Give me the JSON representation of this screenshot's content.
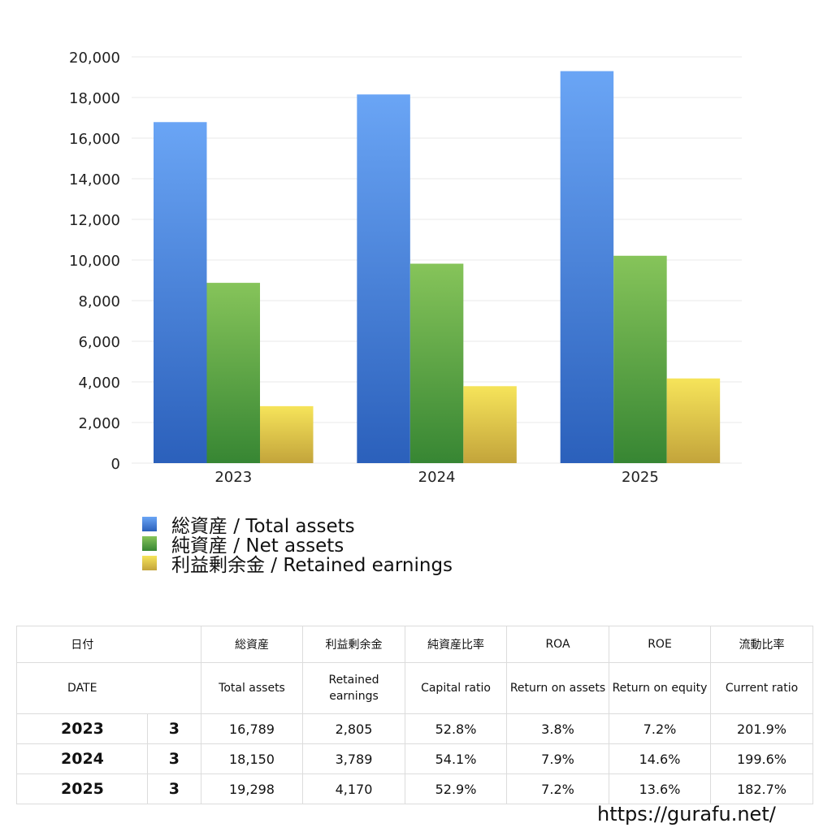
{
  "chart_data": {
    "type": "bar",
    "categories": [
      "2023",
      "2024",
      "2025"
    ],
    "series": [
      {
        "name": "総資産 / Total assets",
        "values": [
          16789,
          18150,
          19298
        ],
        "colors": [
          "#6aa5f5",
          "#2b60bb"
        ]
      },
      {
        "name": "純資産 / Net assets",
        "values": [
          8876,
          9819,
          10209
        ],
        "colors": [
          "#86c45a",
          "#378633"
        ]
      },
      {
        "name": "利益剰余金 / Retained earnings",
        "values": [
          2805,
          3789,
          4170
        ],
        "colors": [
          "#f6e45a",
          "#c3a43b"
        ]
      }
    ],
    "ylim": [
      0,
      20000
    ],
    "yticks": [
      "0",
      "2,000",
      "4,000",
      "6,000",
      "8,000",
      "10,000",
      "12,000",
      "14,000",
      "16,000",
      "18,000",
      "20,000"
    ],
    "grid": true,
    "legend_position": "bottom"
  },
  "table": {
    "headers_jp": [
      "日付",
      "総資産",
      "利益剰余金",
      "純資産比率",
      "ROA",
      "ROE",
      "流動比率"
    ],
    "headers_en": [
      "DATE",
      "Total assets",
      "Retained earnings",
      "Capital ratio",
      "Return on assets",
      "Return on equity",
      "Current ratio"
    ],
    "rows": [
      {
        "year": "2023",
        "month": "3",
        "total_assets": "16,789",
        "retained_earnings": "2,805",
        "capital_ratio": "52.8%",
        "roa": "3.8%",
        "roe": "7.2%",
        "current_ratio": "201.9%"
      },
      {
        "year": "2024",
        "month": "3",
        "total_assets": "18,150",
        "retained_earnings": "3,789",
        "capital_ratio": "54.1%",
        "roa": "7.9%",
        "roe": "14.6%",
        "current_ratio": "199.6%"
      },
      {
        "year": "2025",
        "month": "3",
        "total_assets": "19,298",
        "retained_earnings": "4,170",
        "capital_ratio": "52.9%",
        "roa": "7.2%",
        "roe": "13.6%",
        "current_ratio": "182.7%"
      }
    ]
  },
  "footer": {
    "url": "https://gurafu.net/"
  }
}
